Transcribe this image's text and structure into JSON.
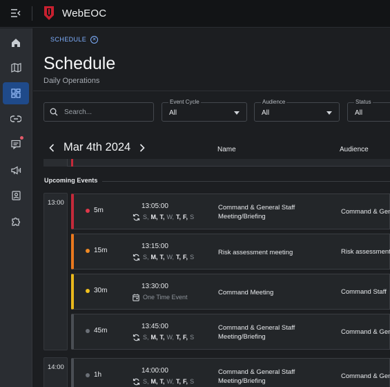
{
  "app": {
    "title": "WebEOC",
    "brand_color": "#c8202f"
  },
  "topbar": {
    "menu_icon": "menu-collapse-icon",
    "logo_icon": "shield-logo-icon"
  },
  "sidebar": {
    "items": [
      {
        "name": "home",
        "icon": "home-icon",
        "active": false
      },
      {
        "name": "map",
        "icon": "map-icon",
        "active": false
      },
      {
        "name": "boards",
        "icon": "dashboard-icon",
        "active": true
      },
      {
        "name": "links",
        "icon": "link-icon",
        "active": false
      },
      {
        "name": "messages",
        "icon": "message-icon",
        "active": false,
        "notification": true
      },
      {
        "name": "announcements",
        "icon": "megaphone-icon",
        "active": false
      },
      {
        "name": "contacts",
        "icon": "contact-card-icon",
        "active": false
      },
      {
        "name": "plugins",
        "icon": "puzzle-icon",
        "active": false
      }
    ]
  },
  "breadcrumb": {
    "chip_label": "SCHEDULE"
  },
  "page": {
    "title": "Schedule",
    "subtitle": "Daily Operations"
  },
  "filters": {
    "search_placeholder": "Search...",
    "event_cycle": {
      "label": "Event Cycle",
      "value": "All"
    },
    "audience": {
      "label": "Audience",
      "value": "All"
    },
    "status": {
      "label": "Status",
      "value": "All"
    }
  },
  "date_nav": {
    "date": "Mar 4th 2024"
  },
  "columns": {
    "name": "Name",
    "audience": "Audience"
  },
  "section": {
    "label": "Upcoming Events"
  },
  "time_groups": [
    "13:00",
    "14:00"
  ],
  "events": [
    {
      "offset": "5m",
      "time": "13:05:00",
      "accent": "#c42a3a",
      "dot": "#e0384a",
      "name_line1": "Command & General Staff",
      "name_line2": "Meeting/Briefing",
      "audience": "Command & Gen",
      "recurrence": {
        "type": "weekly",
        "days": [
          "S",
          "M",
          "T",
          "W",
          "T",
          "F",
          "S"
        ],
        "active": [
          false,
          true,
          true,
          false,
          true,
          true,
          false
        ]
      }
    },
    {
      "offset": "15m",
      "time": "13:15:00",
      "accent": "#e8781e",
      "dot": "#f08a24",
      "name_line1": "Risk assessment meeting",
      "name_line2": "",
      "audience": "Risk assessment",
      "recurrence": {
        "type": "weekly",
        "days": [
          "S",
          "M",
          "T",
          "W",
          "T",
          "F",
          "S"
        ],
        "active": [
          false,
          true,
          true,
          false,
          true,
          true,
          false
        ]
      }
    },
    {
      "offset": "30m",
      "time": "13:30:00",
      "accent": "#e8b71c",
      "dot": "#f2c11e",
      "name_line1": "Command Meeting",
      "name_line2": "",
      "audience": "Command Staff",
      "recurrence": {
        "type": "once",
        "label": "One Time Event"
      }
    },
    {
      "offset": "45m",
      "time": "13:45:00",
      "accent": "#4a4e54",
      "dot": "#6b7077",
      "name_line1": "Command & General Staff",
      "name_line2": "Meeting/Briefing",
      "audience": "Command & Gen",
      "recurrence": {
        "type": "weekly",
        "days": [
          "S",
          "M",
          "T",
          "W",
          "T",
          "F",
          "S"
        ],
        "active": [
          false,
          true,
          true,
          false,
          true,
          true,
          false
        ]
      }
    },
    {
      "offset": "1h",
      "time": "14:00:00",
      "accent": "#4a4e54",
      "dot": "#6b7077",
      "name_line1": "Command & General Staff",
      "name_line2": "Meeting/Briefing",
      "audience": "Command & Gen",
      "recurrence": {
        "type": "weekly",
        "days": [
          "S",
          "M",
          "T",
          "W",
          "T",
          "F",
          "S"
        ],
        "active": [
          false,
          true,
          true,
          false,
          true,
          true,
          false
        ]
      }
    }
  ]
}
